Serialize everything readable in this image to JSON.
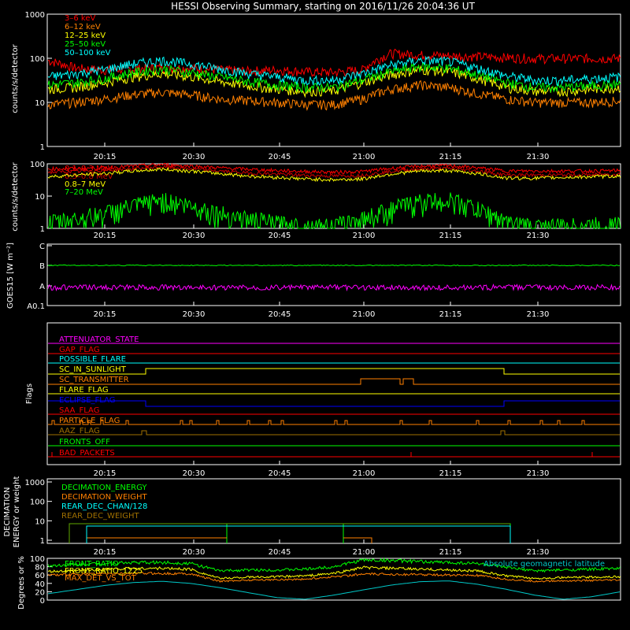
{
  "title": "HESSI Observing Summary, starting on 2016/11/26 20:04:36 UT",
  "x_ticks": [
    "20:15",
    "20:30",
    "20:45",
    "21:00",
    "21:15",
    "21:30"
  ],
  "chart_data": [
    {
      "type": "line",
      "panel": "hxr",
      "ylabel": "counts/s/detector",
      "yscale": "log",
      "ylim": [
        1,
        1000
      ],
      "ytick_labels": [
        "1",
        "10",
        "100",
        "1000"
      ],
      "legend_placement": "top-left",
      "x": [
        "20:05",
        "20:10",
        "20:15",
        "20:20",
        "20:25",
        "20:30",
        "20:35",
        "20:40",
        "20:45",
        "20:50",
        "20:55",
        "21:00",
        "21:05",
        "21:10",
        "21:15",
        "21:20",
        "21:25",
        "21:30",
        "21:35",
        "21:40",
        "21:45"
      ],
      "series": [
        {
          "name": "3–6 keV",
          "color": "#ff0000",
          "values": [
            90,
            60,
            55,
            58,
            62,
            60,
            55,
            52,
            55,
            50,
            48,
            55,
            130,
            120,
            115,
            110,
            105,
            100,
            100,
            100,
            100
          ]
        },
        {
          "name": "6–12 keV",
          "color": "#ff8000",
          "values": [
            9,
            10,
            12,
            15,
            17,
            15,
            12,
            11,
            10,
            9,
            9,
            12,
            20,
            25,
            22,
            16,
            12,
            10,
            10,
            10,
            11
          ]
        },
        {
          "name": "12–25 keV",
          "color": "#ffff00",
          "values": [
            20,
            22,
            28,
            38,
            45,
            38,
            30,
            24,
            20,
            18,
            18,
            28,
            42,
            55,
            50,
            35,
            22,
            18,
            18,
            20,
            22
          ]
        },
        {
          "name": "25–50 keV",
          "color": "#00ff00",
          "values": [
            25,
            28,
            35,
            48,
            58,
            48,
            38,
            30,
            25,
            22,
            22,
            32,
            50,
            65,
            60,
            42,
            28,
            22,
            22,
            24,
            26
          ]
        },
        {
          "name": "50–100 keV",
          "color": "#00ffff",
          "values": [
            38,
            45,
            55,
            75,
            90,
            75,
            58,
            45,
            38,
            32,
            32,
            45,
            70,
            90,
            85,
            60,
            40,
            32,
            32,
            35,
            38
          ]
        }
      ]
    },
    {
      "type": "line",
      "panel": "gamma",
      "ylabel": "counts/s/detector",
      "yscale": "log",
      "ylim": [
        1,
        100
      ],
      "ytick_labels": [
        "1",
        "10",
        "100"
      ],
      "legend_placement": "top-left",
      "x": [
        "20:05",
        "20:10",
        "20:15",
        "20:20",
        "20:25",
        "20:30",
        "20:35",
        "20:40",
        "20:45",
        "20:50",
        "20:55",
        "21:00",
        "21:05",
        "21:10",
        "21:15",
        "21:20",
        "21:25",
        "21:30",
        "21:35",
        "21:40",
        "21:45"
      ],
      "series": [
        {
          "name": "0.1–0.3 MeV",
          "color": "#ff0000",
          "values": [
            70,
            72,
            75,
            85,
            95,
            85,
            75,
            68,
            62,
            58,
            55,
            58,
            72,
            85,
            88,
            75,
            60,
            60,
            60,
            60,
            62
          ]
        },
        {
          "name": "0.3–0.8 MeV",
          "color": "#cc0000",
          "values": [
            55,
            58,
            62,
            70,
            80,
            70,
            60,
            52,
            48,
            44,
            42,
            44,
            58,
            70,
            72,
            60,
            45,
            45,
            45,
            46,
            48
          ]
        },
        {
          "name": "0.8–7 MeV",
          "color": "#ffff00",
          "values": [
            40,
            45,
            50,
            60,
            68,
            60,
            50,
            42,
            38,
            34,
            32,
            34,
            48,
            60,
            62,
            50,
            36,
            36,
            38,
            40,
            42
          ]
        },
        {
          "name": "7–20 MeV",
          "color": "#00ff00",
          "values": [
            1.5,
            2,
            3,
            5,
            8,
            5,
            3,
            2,
            1.5,
            1.2,
            1.2,
            2,
            4,
            7,
            8,
            4,
            1.5,
            1.2,
            1.2,
            1.3,
            1.4
          ]
        }
      ]
    },
    {
      "type": "line",
      "panel": "goes",
      "ylabel": "GOES15 [W m⁻²]",
      "ytick_labels": [
        "A0.1",
        "A",
        "B",
        "C"
      ],
      "series": [
        {
          "name": "GOES long",
          "color": "#00ff00",
          "level": "B"
        },
        {
          "name": "GOES short",
          "color": "#ff00ff",
          "level": "A"
        }
      ]
    },
    {
      "type": "flags",
      "panel": "flags",
      "ylabel": "Flags",
      "flags": [
        {
          "name": "ATTENUATOR_STATE",
          "color": "#ff00ff"
        },
        {
          "name": "GAP_FLAG",
          "color": "#ff0000"
        },
        {
          "name": "POSSIBLE_FLARE",
          "color": "#00ffff"
        },
        {
          "name": "SC_IN_SUNLIGHT",
          "color": "#ffff00"
        },
        {
          "name": "SC_TRANSMITTER",
          "color": "#ff8000"
        },
        {
          "name": "FLARE_FLAG",
          "color": "#ffff00"
        },
        {
          "name": "ECLIPSE_FLAG",
          "color": "#0000ff"
        },
        {
          "name": "SAA_FLAG",
          "color": "#ff0000"
        },
        {
          "name": "PARTICLE_FLAG",
          "color": "#ff8000"
        },
        {
          "name": "AAZ_FLAG",
          "color": "#a07000"
        },
        {
          "name": "FRONTS_OFF",
          "color": "#00ff00"
        },
        {
          "name": "BAD_PACKETS",
          "color": "#ff0000"
        }
      ]
    },
    {
      "type": "line",
      "panel": "decimation",
      "ylabel": "DECIMATION ENERGY or weight",
      "yscale": "log",
      "ylim": [
        1,
        1000
      ],
      "ytick_labels": [
        "1",
        "10",
        "100",
        "1000"
      ],
      "series": [
        {
          "name": "DECIMATION_ENERGY",
          "color": "#00ff00"
        },
        {
          "name": "DECIMATION_WEIGHT",
          "color": "#ff8000"
        },
        {
          "name": "REAR_DEC_CHAN/128",
          "color": "#00ffff"
        },
        {
          "name": "REAR_DEC_WEIGHT",
          "color": "#a07000"
        }
      ]
    },
    {
      "type": "line",
      "panel": "ratios",
      "ylabel": "Degrees or %",
      "ylim": [
        0,
        100
      ],
      "ytick_labels": [
        "0",
        "20",
        "40",
        "60",
        "80",
        "100"
      ],
      "x": [
        "20:05",
        "20:10",
        "20:15",
        "20:20",
        "20:25",
        "20:30",
        "20:35",
        "20:40",
        "20:45",
        "20:50",
        "20:55",
        "21:00",
        "21:05",
        "21:10",
        "21:15",
        "21:20",
        "21:25",
        "21:30",
        "21:35",
        "21:40",
        "21:45"
      ],
      "series": [
        {
          "name": "FRONT_RATIO",
          "color": "#00ff00",
          "values": [
            82,
            85,
            88,
            90,
            90,
            88,
            70,
            72,
            72,
            74,
            80,
            96,
            95,
            92,
            90,
            88,
            78,
            70,
            72,
            74,
            76
          ]
        },
        {
          "name": "FRONT_RATIO_1225",
          "color": "#ffff00",
          "values": [
            68,
            70,
            74,
            76,
            76,
            74,
            52,
            55,
            56,
            58,
            64,
            78,
            76,
            74,
            72,
            70,
            58,
            52,
            54,
            55,
            56
          ]
        },
        {
          "name": "MAX_DET_VS_TOT",
          "color": "#ff8000",
          "values": [
            60,
            62,
            63,
            64,
            64,
            63,
            45,
            48,
            49,
            50,
            56,
            62,
            62,
            61,
            60,
            59,
            50,
            45,
            46,
            47,
            48
          ]
        },
        {
          "name": "Absolute geomagnetic latitude",
          "color": "#00c8c8",
          "values": [
            15,
            25,
            35,
            42,
            45,
            40,
            30,
            18,
            6,
            2,
            12,
            24,
            36,
            44,
            46,
            38,
            26,
            12,
            2,
            8,
            20
          ]
        }
      ]
    }
  ]
}
